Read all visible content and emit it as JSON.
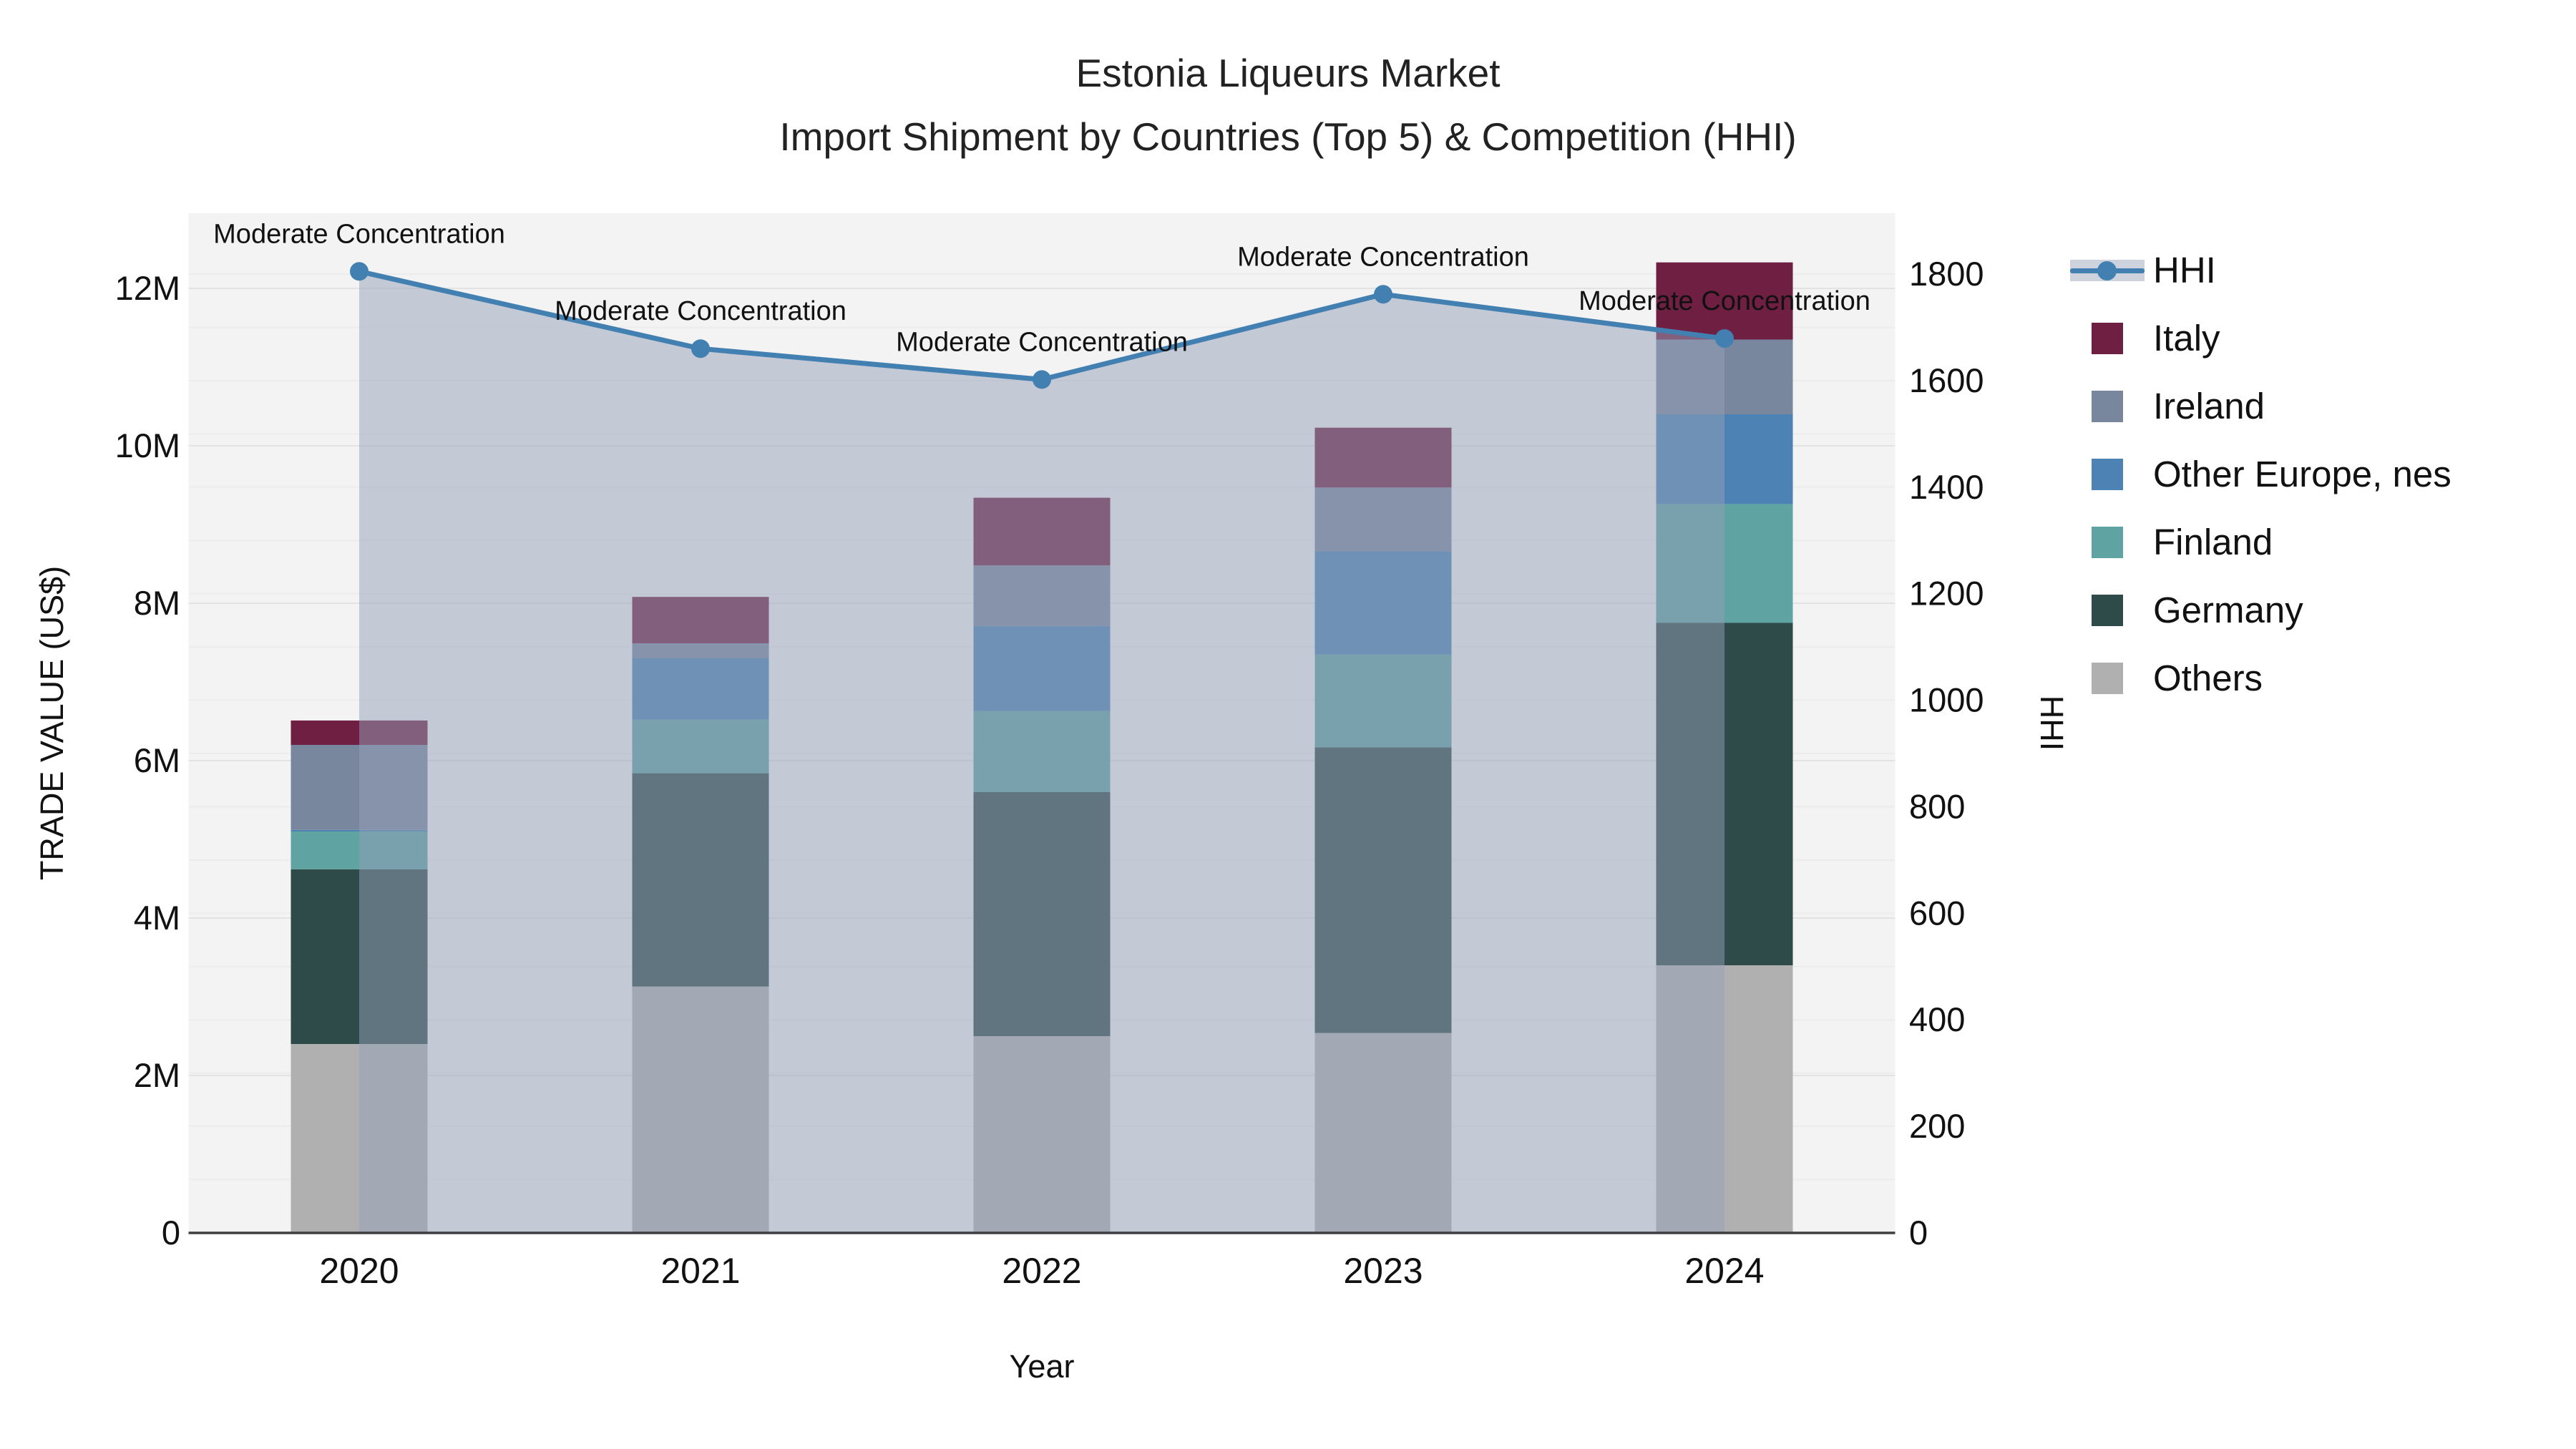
{
  "title": {
    "line1": "Estonia Liqueurs Market",
    "line2": "Import Shipment by Countries (Top 5) & Competition (HHI)"
  },
  "chart_data": {
    "type": "bar",
    "stacked": true,
    "subtype": "stacked-bar-with-line-overlay",
    "categories": [
      "2020",
      "2021",
      "2022",
      "2023",
      "2024"
    ],
    "xlabel": "Year",
    "grid": true,
    "left_axis": {
      "label": "TRADE VALUE (US$)",
      "tick_labels": [
        "0",
        "2M",
        "4M",
        "6M",
        "8M",
        "10M",
        "12M"
      ],
      "tick_values_usd": [
        0,
        2000000,
        4000000,
        6000000,
        8000000,
        10000000,
        12000000
      ],
      "range_usd": [
        0,
        12950000
      ]
    },
    "right_axis": {
      "label": "HHI",
      "tick_values": [
        0,
        200,
        400,
        600,
        800,
        1000,
        1200,
        1400,
        1600,
        1800
      ],
      "range": [
        0,
        1914
      ]
    },
    "series": [
      {
        "name": "Others",
        "color": "#b0b0b0",
        "values_usd": [
          2400000,
          3130000,
          2500000,
          2540000,
          3400000
        ]
      },
      {
        "name": "Germany",
        "color": "#2e4b49",
        "values_usd": [
          2220000,
          2710000,
          3100000,
          3630000,
          4350000
        ]
      },
      {
        "name": "Finland",
        "color": "#5fa3a2",
        "values_usd": [
          480000,
          680000,
          1030000,
          1180000,
          1510000
        ]
      },
      {
        "name": "Other Europe, nes",
        "color": "#4d82b4",
        "values_usd": [
          20000,
          780000,
          1080000,
          1310000,
          1140000
        ]
      },
      {
        "name": "Ireland",
        "color": "#78879e",
        "values_usd": [
          1080000,
          190000,
          770000,
          810000,
          950000
        ]
      },
      {
        "name": "Italy",
        "color": "#6e1f42",
        "values_usd": [
          310000,
          590000,
          860000,
          760000,
          980000
        ]
      }
    ],
    "totals_usd": [
      6510000,
      8080000,
      9340000,
      10230000,
      12330000
    ],
    "line_series": {
      "name": "HHI",
      "color": "#4380b2",
      "area_fill_color": "rgba(148,159,184,0.5)",
      "values": [
        1805,
        1660,
        1602,
        1762,
        1679
      ]
    },
    "annotations": [
      {
        "category": "2020",
        "text": "Moderate Concentration"
      },
      {
        "category": "2021",
        "text": "Moderate Concentration"
      },
      {
        "category": "2022",
        "text": "Moderate Concentration"
      },
      {
        "category": "2023",
        "text": "Moderate Concentration"
      },
      {
        "category": "2024",
        "text": "Moderate Concentration"
      }
    ],
    "legend_position": "top-right-outside"
  },
  "legend": {
    "items": [
      {
        "label": "HHI",
        "type": "line",
        "color": "#4380b2"
      },
      {
        "label": "Italy",
        "type": "swatch",
        "color": "#6e1f42"
      },
      {
        "label": "Ireland",
        "type": "swatch",
        "color": "#78879e"
      },
      {
        "label": "Other Europe, nes",
        "type": "swatch",
        "color": "#4d82b4"
      },
      {
        "label": "Finland",
        "type": "swatch",
        "color": "#5fa3a2"
      },
      {
        "label": "Germany",
        "type": "swatch",
        "color": "#2e4b49"
      },
      {
        "label": "Others",
        "type": "swatch",
        "color": "#b0b0b0"
      }
    ]
  }
}
